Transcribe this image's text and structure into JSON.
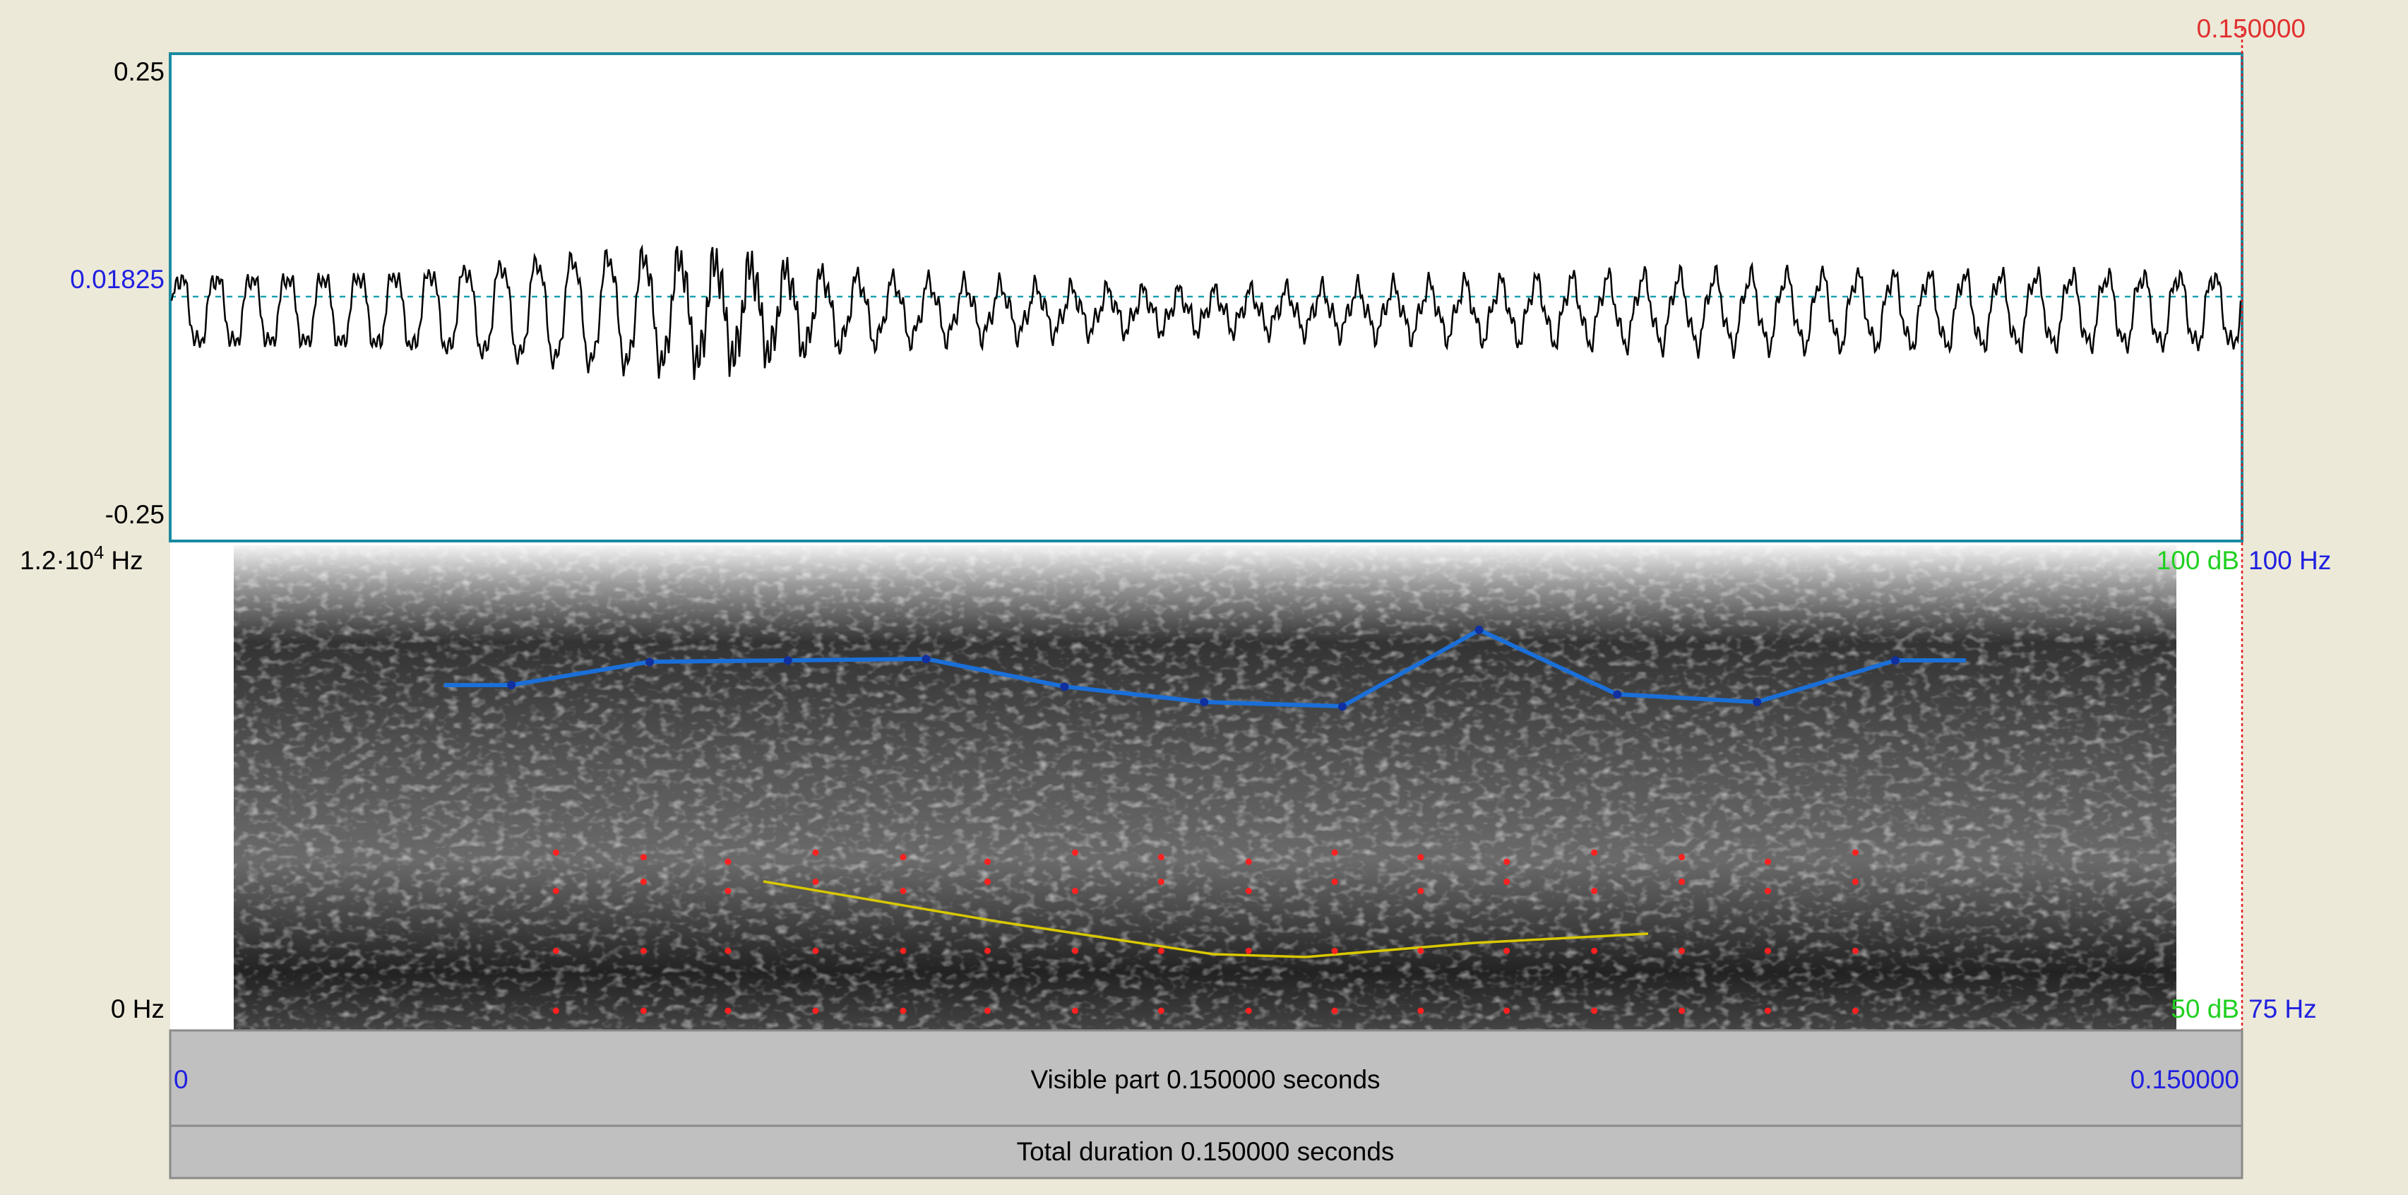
{
  "cursor_time": "0.150000",
  "waveform": {
    "top": "0.25",
    "level": "0.01825",
    "bottom": "-0.25"
  },
  "spectrogram": {
    "top_base": "1.2·10",
    "top_exponent": "4",
    "top_unit": "Hz",
    "bottom": "0 Hz",
    "intensity_top": "100 dB",
    "intensity_bottom": "50 dB",
    "pitch_top": "100 Hz",
    "pitch_bottom": "75 Hz"
  },
  "visible_bar": {
    "start": "0",
    "label": "Visible part 0.150000 seconds",
    "end": "0.150000"
  },
  "total_bar": {
    "label": "Total duration 0.150000 seconds"
  }
}
